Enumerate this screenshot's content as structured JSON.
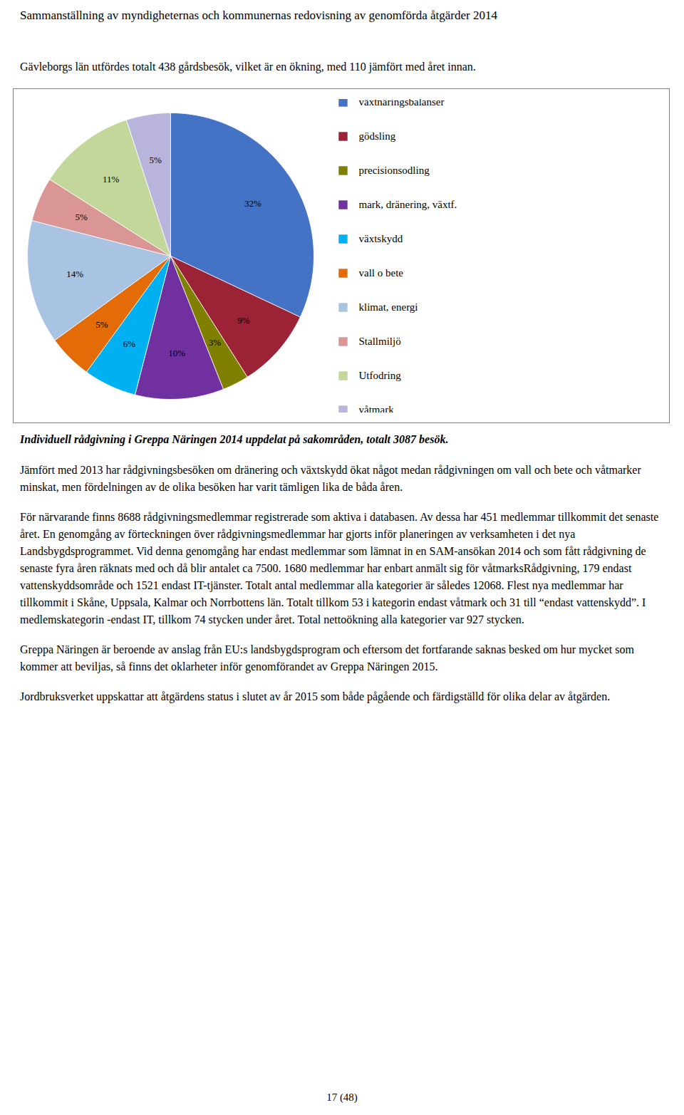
{
  "page": {
    "title": "Sammanställning av myndigheternas och kommunernas redovisning av genomförda åtgärder 2014",
    "paragraphs_before": [
      "Gävleborgs län utfördes totalt 438 gårdsbesök, vilket är en ökning, med 110 jämfört med året innan."
    ],
    "paragraphs_after": [
      "Jämfört med 2013 har rådgivningsbesöken om dränering och växtskydd ökat något medan rådgivningen om vall och bete och våtmarker minskat, men fördelningen av de olika besöken har varit tämligen lika de båda åren.",
      "För närvarande finns 8688 rådgivningsmedlemmar registrerade som aktiva i databasen. Av dessa har 451 medlemmar tillkommit det senaste året. En genomgång av förteckningen över rådgivningsmedlemmar har gjorts inför planeringen av verksamheten i det nya Landsbygdsprogrammet. Vid denna genomgång har endast medlemmar som lämnat in en SAM-ansökan 2014 och som fått rådgivning de senaste fyra åren räknats med och då blir antalet ca 7500. 1680 medlemmar har enbart anmält sig för våtmarksRådgivning, 179 endast vattenskyddsområde och 1521 endast IT-tjänster. Totalt antal medlemmar alla kategorier är således 12068. Flest nya medlemmar har tillkommit i Skåne, Uppsala, Kalmar och Norrbottens län. Totalt tillkom 53 i kategorin endast våtmark och 31 till “endast vattenskydd”. I medlemskategorin -endast IT, tillkom 74 stycken under året. Total nettoökning alla kategorier var 927 stycken.",
      "Greppa Näringen är beroende av anslag från EU:s landsbygdsprogram och eftersom det fortfarande saknas besked om hur mycket som kommer att beviljas, så finns det oklarheter inför genomförandet av Greppa Näringen 2015.",
      "Jordbruksverket uppskattar att åtgärdens status i slutet av år 2015 som både pågående och färdigställd för olika delar av åtgärden."
    ],
    "footer": "17 (48)"
  },
  "chart_data": {
    "type": "pie",
    "caption": "Individuell rådgivning i Greppa Näringen 2014 uppdelat på sakområden, totalt 3087 besök.",
    "categories": [
      "växtnäringsbalanser",
      "gödsling",
      "precisionsodling",
      "mark, dränering, växtf.",
      "växtskydd",
      "vall o bete",
      "klimat, energi",
      "Stallmiljö",
      "Utfodring",
      "våtmark"
    ],
    "values": [
      32,
      9,
      3,
      10,
      6,
      5,
      14,
      5,
      11,
      5
    ],
    "value_labels": [
      "32%",
      "9%",
      "3%",
      "10%",
      "6%",
      "5%",
      "14%",
      "5%",
      "11%",
      "5%"
    ],
    "colors": [
      "#4472C4",
      "#9B2335",
      "#7F7F00",
      "#7030A0",
      "#00B0F0",
      "#E36C09",
      "#A9C3E2",
      "#DA9694",
      "#C4D79B",
      "#B8B4DC"
    ],
    "data_labels": true,
    "legend": "right"
  }
}
